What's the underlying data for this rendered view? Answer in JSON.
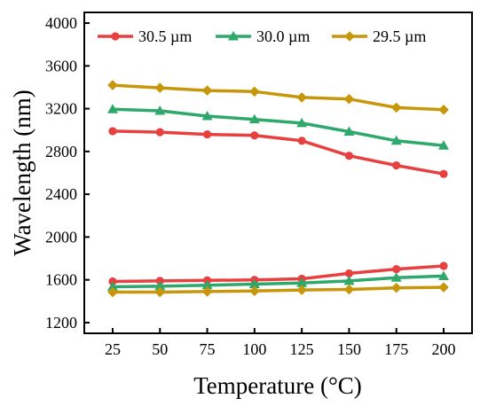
{
  "chart_data": {
    "type": "line",
    "title": "",
    "xlabel": "Temperature (°C)",
    "ylabel": "Wavelength (nm)",
    "xlim": [
      10,
      215
    ],
    "ylim": [
      1100,
      4100
    ],
    "x_ticks": [
      25,
      50,
      75,
      100,
      125,
      150,
      175,
      200
    ],
    "y_ticks": [
      1200,
      1600,
      2000,
      2400,
      2800,
      3200,
      3600,
      4000
    ],
    "grid": false,
    "legend_position": "top",
    "x": [
      25,
      50,
      75,
      100,
      125,
      150,
      175,
      200
    ],
    "series": [
      {
        "name": "30.5 µm",
        "marker": "circle",
        "color": "#e8403f",
        "branch": "upper",
        "values": [
          2990,
          2980,
          2960,
          2950,
          2900,
          2760,
          2670,
          2590
        ]
      },
      {
        "name": "30.5 µm",
        "marker": "circle",
        "color": "#e8403f",
        "branch": "lower",
        "values": [
          1585,
          1590,
          1595,
          1600,
          1610,
          1660,
          1700,
          1730
        ]
      },
      {
        "name": "30.0 µm",
        "marker": "triangle",
        "color": "#2ea86b",
        "branch": "upper",
        "values": [
          3195,
          3180,
          3130,
          3100,
          3065,
          2985,
          2900,
          2855
        ]
      },
      {
        "name": "30.0 µm",
        "marker": "triangle",
        "color": "#2ea86b",
        "branch": "lower",
        "values": [
          1535,
          1540,
          1550,
          1560,
          1570,
          1590,
          1620,
          1635
        ]
      },
      {
        "name": "29.5 µm",
        "marker": "diamond",
        "color": "#c8960a",
        "branch": "upper",
        "values": [
          3420,
          3395,
          3370,
          3360,
          3305,
          3290,
          3210,
          3190
        ]
      },
      {
        "name": "29.5 µm",
        "marker": "diamond",
        "color": "#c8960a",
        "branch": "lower",
        "values": [
          1485,
          1485,
          1490,
          1495,
          1505,
          1510,
          1525,
          1530
        ]
      }
    ],
    "legend": [
      {
        "label": "30.5 µm",
        "marker": "circle",
        "color": "#e8403f"
      },
      {
        "label": "30.0 µm",
        "marker": "triangle",
        "color": "#2ea86b"
      },
      {
        "label": "29.5 µm",
        "marker": "diamond",
        "color": "#c8960a"
      }
    ]
  }
}
